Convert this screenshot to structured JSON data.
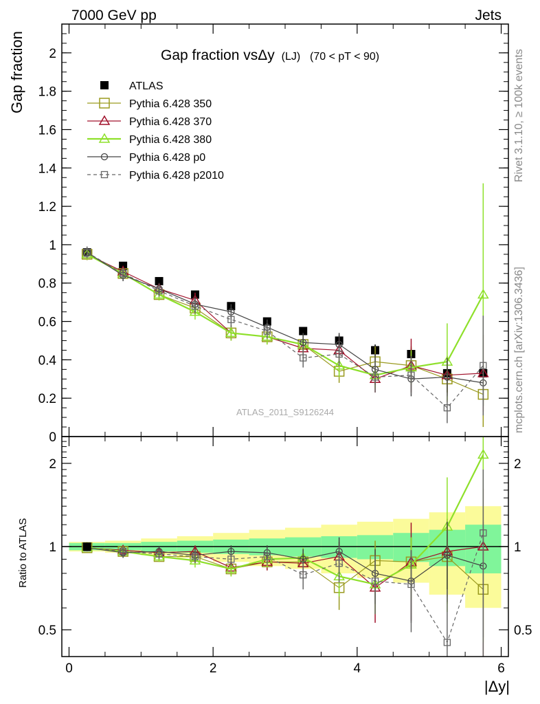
{
  "header": {
    "left": "7000 GeV pp",
    "right": "Jets"
  },
  "side_labels": {
    "rivet": "Rivet 3.1.10, ≥ 100k events",
    "mcplots": "mcplots.cern.ch [arXiv:1306.3436]"
  },
  "watermark": "ATLAS_2011_S9126244",
  "colors": {
    "ATLAS": "#000000",
    "p350": "#9a9a1f",
    "p370": "#a0102a",
    "p380": "#8ee02a",
    "p0": "#444444",
    "p2010": "#666666",
    "band_inner": "#80f59a",
    "band_outer": "#fbfb9a"
  },
  "chart_data": [
    {
      "type": "scatter",
      "title": "Gap fraction vsΔy (LJ)  (70 < pT <  90)",
      "title_parts": {
        "main": "Gap fraction vsΔy",
        "tag": "(LJ)",
        "cut": "(70 < pT <  90)"
      },
      "xlabel": "|Δy|",
      "ylabel": "Gap fraction",
      "xlim": [
        -0.1,
        6.1
      ],
      "ylim": [
        0,
        2.15
      ],
      "grid": false,
      "legend_position": "top-left",
      "x_ticks": [
        0,
        2,
        4,
        6
      ],
      "y_ticks": [
        0,
        0.2,
        0.4,
        0.6,
        0.8,
        1,
        1.2,
        1.4,
        1.6,
        1.8,
        2
      ],
      "x": [
        0.25,
        0.75,
        1.25,
        1.75,
        2.25,
        2.75,
        3.25,
        3.75,
        4.25,
        4.75,
        5.25,
        5.75
      ],
      "series": [
        {
          "name": "ATLAS",
          "marker": "filled-square",
          "values": [
            0.96,
            0.89,
            0.81,
            0.74,
            0.68,
            0.6,
            0.55,
            0.5,
            0.45,
            0.43,
            0.33,
            0.33
          ],
          "errors": [
            0.02,
            0.02,
            0.02,
            0.02,
            0.02,
            0.02,
            0.02,
            0.03,
            0.03,
            0.03,
            0.03,
            0.04
          ]
        },
        {
          "name": "Pythia 6.428 350",
          "marker": "open-square",
          "values": [
            0.95,
            0.85,
            0.74,
            0.67,
            0.54,
            0.52,
            0.48,
            0.34,
            0.39,
            0.37,
            0.3,
            0.22
          ],
          "errors": [
            0.03,
            0.03,
            0.03,
            0.04,
            0.04,
            0.04,
            0.05,
            0.06,
            0.08,
            0.1,
            0.12,
            0.17
          ]
        },
        {
          "name": "Pythia 6.428 370",
          "marker": "open-triangle",
          "values": [
            0.95,
            0.86,
            0.77,
            0.71,
            0.54,
            0.52,
            0.46,
            0.45,
            0.3,
            0.37,
            0.32,
            0.33
          ],
          "errors": [
            0.03,
            0.03,
            0.03,
            0.04,
            0.04,
            0.04,
            0.05,
            0.06,
            0.07,
            0.14,
            0.1,
            0.2
          ]
        },
        {
          "name": "Pythia 6.428 380",
          "marker": "open-triangle",
          "values": [
            0.95,
            0.85,
            0.74,
            0.65,
            0.54,
            0.52,
            0.48,
            0.37,
            0.32,
            0.36,
            0.39,
            0.74
          ],
          "errors": [
            0.03,
            0.03,
            0.03,
            0.04,
            0.04,
            0.04,
            0.05,
            0.06,
            0.07,
            0.09,
            0.2,
            0.58
          ]
        },
        {
          "name": "Pythia 6.428 p0",
          "marker": "open-circle",
          "values": [
            0.96,
            0.84,
            0.77,
            0.69,
            0.65,
            0.57,
            0.49,
            0.48,
            0.35,
            0.3,
            0.31,
            0.28
          ],
          "errors": [
            0.03,
            0.03,
            0.03,
            0.04,
            0.04,
            0.04,
            0.05,
            0.06,
            0.08,
            0.09,
            0.1,
            0.12
          ]
        },
        {
          "name": "Pythia 6.428 p2010",
          "marker": "open-square-small",
          "dashed": true,
          "values": [
            0.96,
            0.85,
            0.76,
            0.68,
            0.61,
            0.55,
            0.41,
            0.43,
            0.31,
            0.32,
            0.15,
            0.37
          ],
          "errors": [
            0.03,
            0.03,
            0.03,
            0.04,
            0.04,
            0.04,
            0.05,
            0.06,
            0.08,
            0.1,
            0.08,
            0.26
          ]
        }
      ]
    },
    {
      "type": "scatter",
      "title": "",
      "xlabel": "|Δy|",
      "ylabel": "Ratio to ATLAS",
      "log_y": true,
      "xlim": [
        -0.1,
        6.1
      ],
      "ylim": [
        0.4,
        2.5
      ],
      "grid": false,
      "x_ticks": [
        0,
        2,
        4,
        6
      ],
      "y_ticks": [
        0.5,
        1,
        2
      ],
      "reference_line": 1,
      "x_edges": [
        0,
        0.5,
        1,
        1.5,
        2,
        2.5,
        3,
        3.5,
        4,
        4.5,
        5,
        5.5,
        6
      ],
      "bands": {
        "inner": [
          0.03,
          0.03,
          0.04,
          0.05,
          0.06,
          0.07,
          0.08,
          0.09,
          0.1,
          0.12,
          0.15,
          0.2
        ],
        "outer": [
          0.04,
          0.05,
          0.07,
          0.09,
          0.12,
          0.15,
          0.17,
          0.2,
          0.23,
          0.26,
          0.33,
          0.4
        ]
      },
      "x": [
        0.25,
        0.75,
        1.25,
        1.75,
        2.25,
        2.75,
        3.25,
        3.75,
        4.25,
        4.75,
        5.25,
        5.75
      ],
      "series": [
        {
          "name": "Pythia 6.428 350",
          "values": [
            0.99,
            0.96,
            0.92,
            0.92,
            0.83,
            0.88,
            0.88,
            0.71,
            0.89,
            0.88,
            0.92,
            0.7
          ],
          "errors": [
            0.03,
            0.04,
            0.04,
            0.05,
            0.05,
            0.06,
            0.08,
            0.12,
            0.16,
            0.2,
            0.3,
            0.45
          ]
        },
        {
          "name": "Pythia 6.428 370",
          "values": [
            0.99,
            0.97,
            0.95,
            0.96,
            0.84,
            0.88,
            0.87,
            0.92,
            0.71,
            0.88,
            0.96,
            1.0
          ],
          "errors": [
            0.03,
            0.04,
            0.04,
            0.05,
            0.05,
            0.06,
            0.08,
            0.12,
            0.18,
            0.34,
            0.3,
            0.62
          ]
        },
        {
          "name": "Pythia 6.428 380",
          "values": [
            0.99,
            0.96,
            0.92,
            0.89,
            0.83,
            0.9,
            0.91,
            0.78,
            0.73,
            0.86,
            1.18,
            2.15
          ],
          "errors": [
            0.03,
            0.04,
            0.04,
            0.05,
            0.05,
            0.06,
            0.08,
            0.12,
            0.16,
            0.22,
            0.6,
            1.7
          ]
        },
        {
          "name": "Pythia 6.428 p0",
          "values": [
            0.99,
            0.95,
            0.96,
            0.93,
            0.96,
            0.95,
            0.9,
            0.96,
            0.8,
            0.75,
            0.93,
            0.85
          ],
          "errors": [
            0.03,
            0.04,
            0.04,
            0.05,
            0.05,
            0.06,
            0.08,
            0.12,
            0.18,
            0.22,
            0.3,
            0.38
          ]
        },
        {
          "name": "Pythia 6.428 p2010",
          "values": [
            0.99,
            0.96,
            0.94,
            0.92,
            0.9,
            0.92,
            0.79,
            0.87,
            0.75,
            0.73,
            0.45,
            1.12
          ],
          "errors": [
            0.03,
            0.04,
            0.04,
            0.05,
            0.05,
            0.06,
            0.09,
            0.13,
            0.18,
            0.24,
            0.25,
            0.78
          ]
        }
      ]
    }
  ]
}
